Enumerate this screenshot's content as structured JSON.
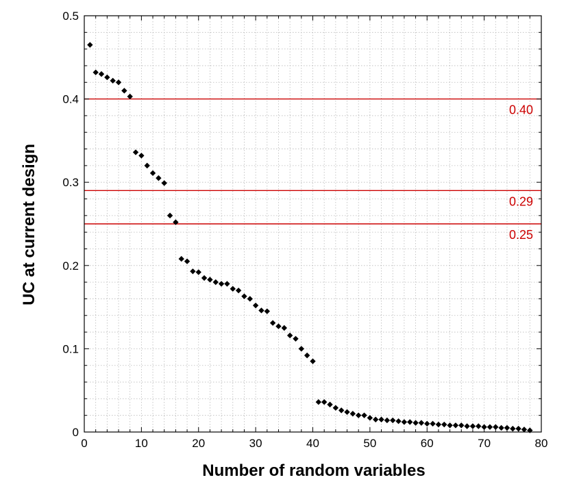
{
  "chart_data": {
    "type": "scatter",
    "title": "",
    "xlabel": "Number of random variables",
    "ylabel": "UC at current design",
    "xlim": [
      0,
      80
    ],
    "ylim": [
      0,
      0.5
    ],
    "x_ticks": [
      0,
      10,
      20,
      30,
      40,
      50,
      60,
      70,
      80
    ],
    "y_ticks": [
      0,
      0.1,
      0.2,
      0.3,
      0.4,
      0.5
    ],
    "x_tick_labels": [
      "0",
      "10",
      "20",
      "30",
      "40",
      "50",
      "60",
      "70",
      "80"
    ],
    "y_tick_labels": [
      "0",
      "0.1",
      "0.2",
      "0.3",
      "0.4",
      "0.5"
    ],
    "grid": true,
    "grid_style": "dotted",
    "marker": "diamond",
    "marker_color": "#000000",
    "series": [
      {
        "x": [
          1,
          2,
          3,
          4,
          5,
          6,
          7,
          8,
          9,
          10,
          11,
          12,
          13,
          14,
          15,
          16,
          17,
          18,
          19,
          20,
          21,
          22,
          23,
          24,
          25,
          26,
          27,
          28,
          29,
          30,
          31,
          32,
          33,
          34,
          35,
          36,
          37,
          38,
          39,
          40,
          41,
          42,
          43,
          44,
          45,
          46,
          47,
          48,
          49,
          50,
          51,
          52,
          53,
          54,
          55,
          56,
          57,
          58,
          59,
          60,
          61,
          62,
          63,
          64,
          65,
          66,
          67,
          68,
          69,
          70,
          71,
          72,
          73,
          74,
          75,
          76,
          77,
          78
        ],
        "y": [
          0.465,
          0.432,
          0.43,
          0.426,
          0.422,
          0.42,
          0.41,
          0.403,
          0.336,
          0.332,
          0.32,
          0.311,
          0.305,
          0.299,
          0.26,
          0.252,
          0.208,
          0.205,
          0.193,
          0.192,
          0.185,
          0.183,
          0.18,
          0.178,
          0.178,
          0.172,
          0.17,
          0.163,
          0.16,
          0.152,
          0.146,
          0.145,
          0.131,
          0.127,
          0.125,
          0.116,
          0.112,
          0.1,
          0.092,
          0.085,
          0.036,
          0.036,
          0.033,
          0.029,
          0.026,
          0.024,
          0.022,
          0.02,
          0.02,
          0.017,
          0.015,
          0.015,
          0.014,
          0.014,
          0.013,
          0.012,
          0.012,
          0.011,
          0.011,
          0.01,
          0.01,
          0.009,
          0.009,
          0.008,
          0.008,
          0.008,
          0.007,
          0.007,
          0.007,
          0.006,
          0.006,
          0.006,
          0.005,
          0.005,
          0.004,
          0.004,
          0.003,
          0.002
        ]
      }
    ],
    "reference_lines": [
      {
        "y": 0.4,
        "label": "0.40",
        "color": "#cc0000"
      },
      {
        "y": 0.29,
        "label": "0.29",
        "color": "#cc0000"
      },
      {
        "y": 0.25,
        "label": "0.25",
        "color": "#cc0000"
      }
    ]
  }
}
